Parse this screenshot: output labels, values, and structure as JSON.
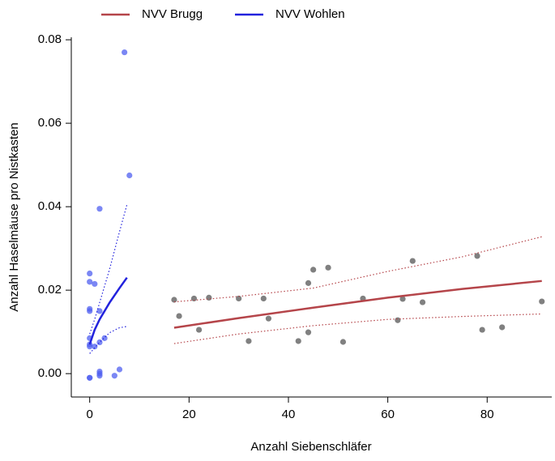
{
  "chart_data": {
    "type": "scatter",
    "xlabel": "Anzahl Siebenschläfer",
    "ylabel": "Anzahl Haselmäuse pro Nistkasten",
    "xlim": [
      -3.7,
      93
    ],
    "ylim": [
      -0.0056,
      0.0806
    ],
    "xticks": [
      0,
      20,
      40,
      60,
      80
    ],
    "yticks": [
      {
        "value": 0,
        "label": "0.00"
      },
      0.02,
      0.04,
      0.06,
      0.08
    ],
    "legend": "top",
    "series": [
      {
        "name": "NVV Brugg",
        "color": "#b5454a",
        "x": [
          17,
          30,
          45,
          60,
          75,
          91
        ],
        "values": [
          0.011,
          0.0133,
          0.0158,
          0.0182,
          0.0203,
          0.0222
        ],
        "upper": [
          0.0172,
          0.0185,
          0.0205,
          0.0245,
          0.028,
          0.0328
        ],
        "lower": [
          0.0072,
          0.0095,
          0.0115,
          0.013,
          0.0137,
          0.0143
        ],
        "point_color": "#555555",
        "points_x": [
          17,
          18,
          21,
          22,
          24,
          30,
          32,
          35,
          36,
          42,
          44,
          44,
          45,
          48,
          51,
          55,
          62,
          63,
          65,
          67,
          78,
          79,
          83,
          91
        ],
        "points_y": [
          0.0177,
          0.0138,
          0.018,
          0.0105,
          0.0182,
          0.018,
          0.0078,
          0.018,
          0.0132,
          0.0078,
          0.0099,
          0.0217,
          0.0249,
          0.0254,
          0.0076,
          0.018,
          0.0128,
          0.0179,
          0.027,
          0.0171,
          0.0282,
          0.0105,
          0.0111,
          0.0173
        ]
      },
      {
        "name": "NVV Wohlen",
        "color": "#2222dd",
        "x": [
          0,
          1,
          2,
          4,
          6,
          7.5
        ],
        "values": [
          0.007,
          0.0105,
          0.013,
          0.017,
          0.0205,
          0.023
        ],
        "upper": [
          0.0095,
          0.013,
          0.017,
          0.025,
          0.034,
          0.0405
        ],
        "lower": [
          0.0048,
          0.0062,
          0.0075,
          0.0098,
          0.011,
          0.0113
        ],
        "point_color": "#4f5ff0",
        "points_x": [
          0,
          0,
          0,
          0,
          0,
          0,
          0,
          0,
          0,
          1,
          1,
          2,
          2,
          2,
          2,
          2,
          2,
          3,
          5,
          6,
          7,
          8
        ],
        "points_y": [
          -0.001,
          -0.001,
          0.0065,
          0.007,
          0.0085,
          0.015,
          0.0155,
          0.022,
          0.024,
          0.0215,
          0.0065,
          0.0395,
          0.015,
          0,
          0.0005,
          -0.0005,
          0.0075,
          0.0085,
          -0.0005,
          0.001,
          0.077,
          0.0475
        ]
      }
    ]
  }
}
